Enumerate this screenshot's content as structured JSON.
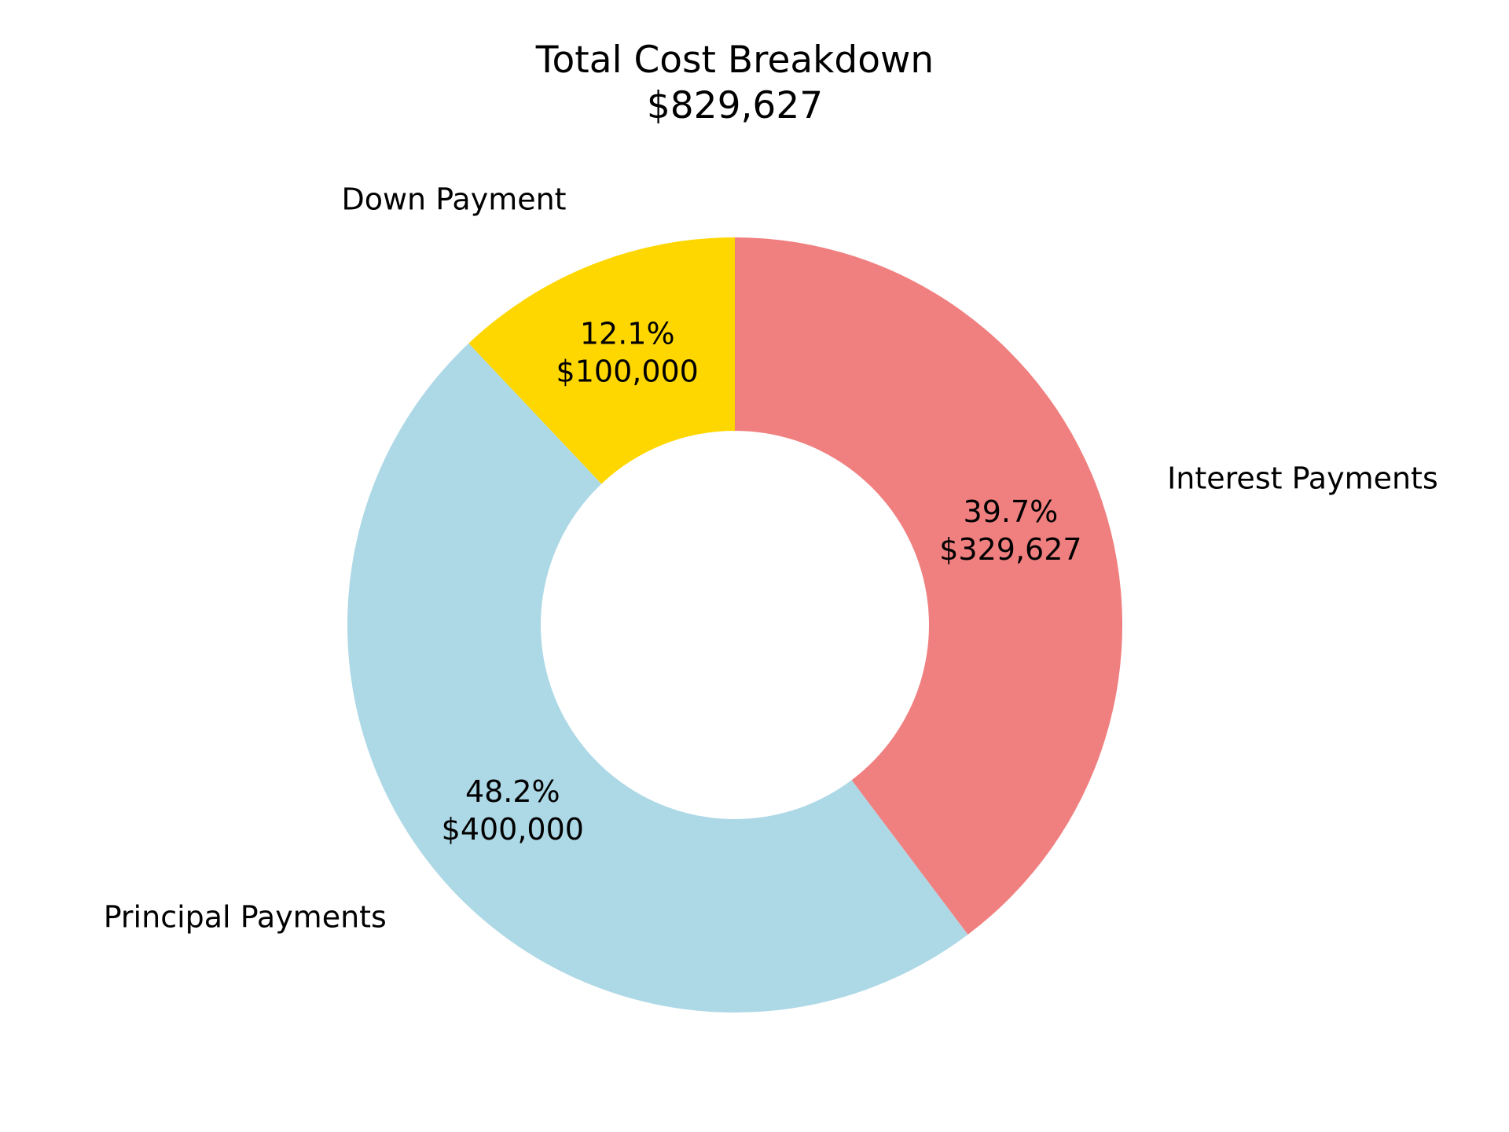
{
  "chart_data": {
    "type": "pie",
    "title": "Total Cost Breakdown",
    "subtitle": "$829,627",
    "donut": true,
    "start_angle_deg": 90,
    "direction": "clockwise",
    "slices": [
      {
        "label": "Interest Payments",
        "value": 329627,
        "percent_label": "39.7%",
        "value_label": "$329,627",
        "color": "#F08080"
      },
      {
        "label": "Principal Payments",
        "value": 400000,
        "percent_label": "48.2%",
        "value_label": "$400,000",
        "color": "#ADD8E6"
      },
      {
        "label": "Down Payment",
        "value": 100000,
        "percent_label": "12.1%",
        "value_label": "$100,000",
        "color": "#FFD700"
      }
    ]
  }
}
